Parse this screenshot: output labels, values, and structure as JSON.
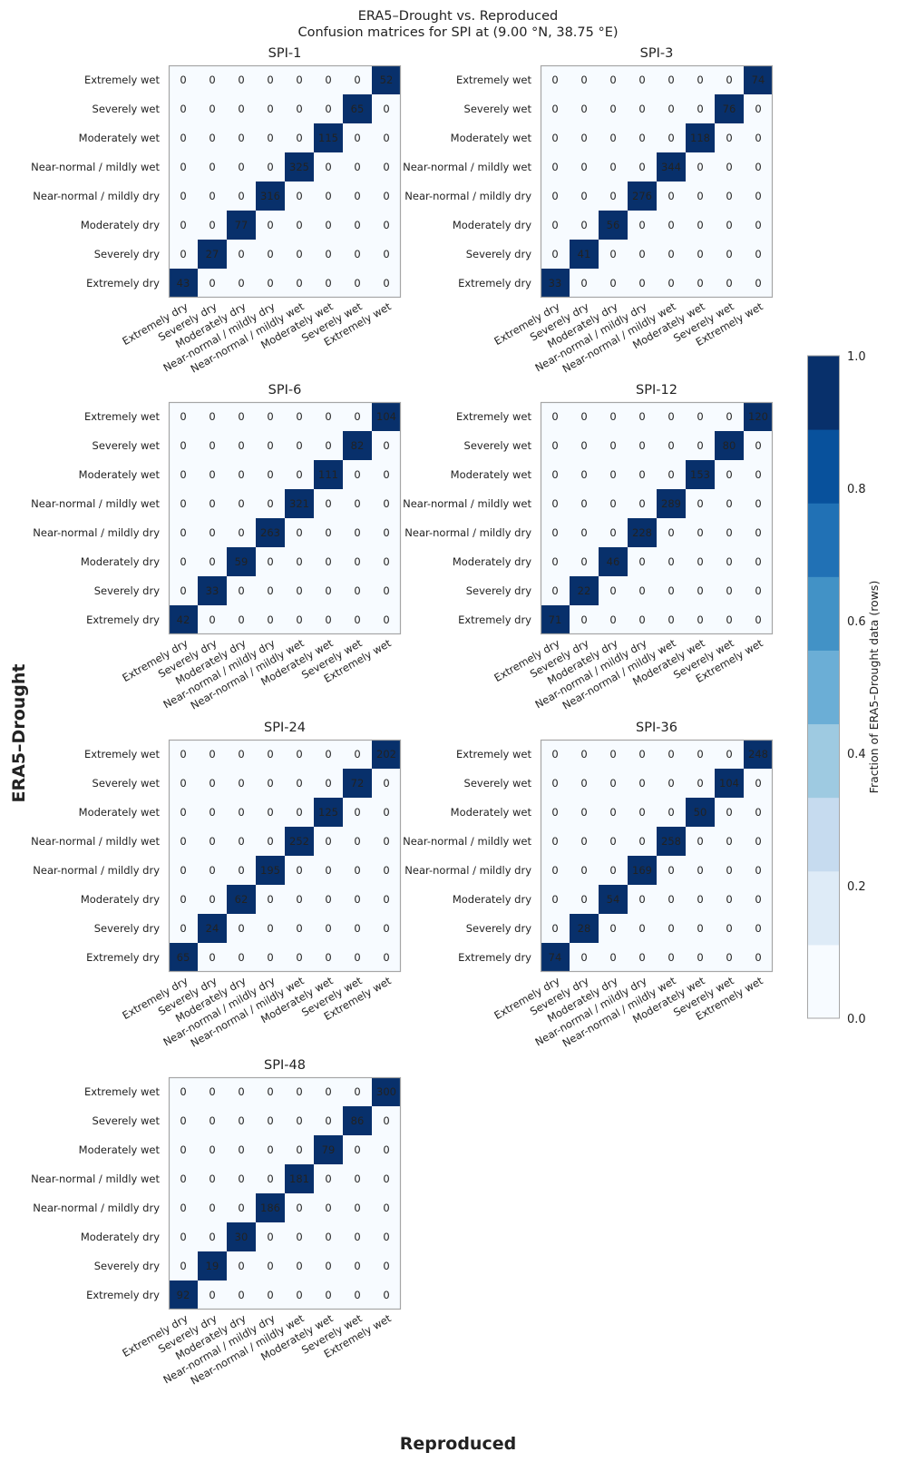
{
  "chart_data": {
    "type": "heatmap",
    "title": "ERA5–Drought vs. Reproduced",
    "subtitle": "Confusion matrices for SPI at (9.00 °N, 38.75 °E)",
    "xlabel": "Reproduced",
    "ylabel": "ERA5–Drought",
    "categories": [
      "Extremely dry",
      "Severely dry",
      "Moderately dry",
      "Near-normal / mildly dry",
      "Near-normal / mildly wet",
      "Moderately wet",
      "Severely wet",
      "Extremely wet"
    ],
    "colorbar": {
      "label": "Fraction of ERA5–Drought data (rows)",
      "range": [
        0,
        1
      ],
      "ticks": [
        "0.0",
        "0.2",
        "0.4",
        "0.6",
        "0.8",
        "1.0"
      ],
      "colors": [
        "#f7fbff",
        "#deebf7",
        "#c6dbef",
        "#9ecae1",
        "#6baed6",
        "#4292c6",
        "#2171b5",
        "#08519c",
        "#08306b"
      ]
    },
    "panels": [
      {
        "title": "SPI-1",
        "diagonal": [
          43,
          27,
          77,
          316,
          325,
          115,
          65,
          52
        ]
      },
      {
        "title": "SPI-3",
        "diagonal": [
          33,
          41,
          56,
          276,
          344,
          118,
          76,
          74
        ]
      },
      {
        "title": "SPI-6",
        "diagonal": [
          42,
          33,
          59,
          263,
          321,
          111,
          82,
          104
        ]
      },
      {
        "title": "SPI-12",
        "diagonal": [
          71,
          22,
          46,
          228,
          289,
          153,
          80,
          120
        ]
      },
      {
        "title": "SPI-24",
        "diagonal": [
          65,
          24,
          62,
          195,
          252,
          125,
          72,
          202
        ]
      },
      {
        "title": "SPI-36",
        "diagonal": [
          74,
          28,
          54,
          169,
          258,
          50,
          104,
          248
        ]
      },
      {
        "title": "SPI-48",
        "diagonal": [
          92,
          19,
          30,
          186,
          181,
          79,
          86,
          300
        ]
      }
    ]
  }
}
